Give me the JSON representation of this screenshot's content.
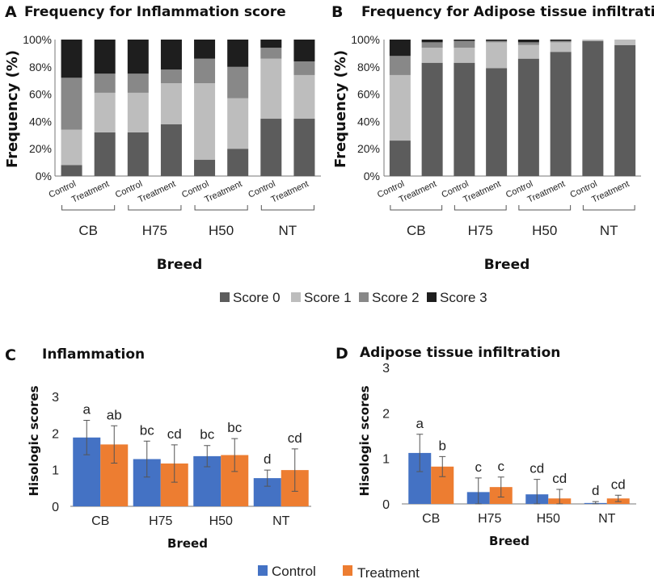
{
  "colors": {
    "score0": "#5c5c5c",
    "score1": "#bdbdbd",
    "score2": "#888888",
    "score3": "#1e1e1e",
    "control": "#4472c4",
    "treatment": "#ed7d31",
    "error": "#555555"
  },
  "chart_data": [
    {
      "panel": "A",
      "type": "bar",
      "stacked": true,
      "title": "Frequency for Inflammation score",
      "ylabel": "Frequency (%)",
      "xlabel": "Breed",
      "ylim": [
        0,
        100
      ],
      "yticks": [
        "0%",
        "20%",
        "40%",
        "60%",
        "80%",
        "100%"
      ],
      "categories": [
        "Control",
        "Treatment",
        "Control",
        "Treatment",
        "Control",
        "Treatment",
        "Control",
        "Treatment"
      ],
      "groups": [
        "CB",
        "H75",
        "H50",
        "NT"
      ],
      "series": [
        {
          "name": "Score 0",
          "values": [
            8,
            32,
            32,
            38,
            12,
            20,
            42,
            42
          ]
        },
        {
          "name": "Score 1",
          "values": [
            26,
            29,
            29,
            30,
            56,
            37,
            44,
            32
          ]
        },
        {
          "name": "Score 2",
          "values": [
            38,
            14,
            14,
            10,
            18,
            23,
            8,
            10
          ]
        },
        {
          "name": "Score 3",
          "values": [
            28,
            25,
            25,
            22,
            14,
            20,
            6,
            16
          ]
        }
      ]
    },
    {
      "panel": "B",
      "type": "bar",
      "stacked": true,
      "title": "Frequency for Adipose tissue infiltration",
      "ylabel": "Frequency (%)",
      "xlabel": "Breed",
      "ylim": [
        0,
        100
      ],
      "yticks": [
        "0%",
        "20%",
        "40%",
        "60%",
        "80%",
        "100%"
      ],
      "categories": [
        "Control",
        "Treatment",
        "Control",
        "Treatment",
        "Control",
        "Treatment",
        "Control",
        "Treatment"
      ],
      "groups": [
        "CB",
        "H75",
        "H50",
        "NT"
      ],
      "series": [
        {
          "name": "Score 0",
          "values": [
            26,
            83,
            83,
            79,
            86,
            91,
            99,
            96
          ]
        },
        {
          "name": "Score 1",
          "values": [
            48,
            11,
            11,
            19,
            10,
            7,
            1,
            4
          ]
        },
        {
          "name": "Score 2",
          "values": [
            14,
            4,
            5,
            1,
            2,
            1,
            0,
            0
          ]
        },
        {
          "name": "Score 3",
          "values": [
            12,
            2,
            1,
            1,
            2,
            1,
            0,
            0
          ]
        }
      ]
    },
    {
      "panel": "C",
      "type": "bar",
      "title": "Inflammation",
      "ylabel": "Hisologic scores",
      "xlabel": "Breed",
      "ylim": [
        0,
        3
      ],
      "yticks": [
        "0",
        "1",
        "2",
        "3"
      ],
      "categories": [
        "CB",
        "H75",
        "H50",
        "NT"
      ],
      "series": [
        {
          "name": "Control",
          "values": [
            1.88,
            1.29,
            1.37,
            0.77
          ],
          "errors": [
            0.47,
            0.49,
            0.29,
            0.22
          ],
          "labels": [
            "a",
            "bc",
            "bc",
            "d"
          ]
        },
        {
          "name": "Treatment",
          "values": [
            1.69,
            1.17,
            1.4,
            0.99
          ],
          "errors": [
            0.51,
            0.51,
            0.45,
            0.58
          ],
          "labels": [
            "ab",
            "cd",
            "bc",
            "cd"
          ]
        }
      ]
    },
    {
      "panel": "D",
      "type": "bar",
      "title": "Adipose tissue infiltration",
      "ylabel": "Hisologic scores",
      "xlabel": "Breed",
      "ylim": [
        0,
        3
      ],
      "yticks": [
        "0",
        "1",
        "2",
        "3"
      ],
      "categories": [
        "CB",
        "H75",
        "H50",
        "NT"
      ],
      "series": [
        {
          "name": "Control",
          "values": [
            1.12,
            0.26,
            0.21,
            0.02
          ],
          "errors": [
            0.41,
            0.31,
            0.33,
            0.03
          ],
          "labels": [
            "a",
            "c",
            "cd",
            "d"
          ]
        },
        {
          "name": "Treatment",
          "values": [
            0.82,
            0.37,
            0.12,
            0.12
          ],
          "errors": [
            0.22,
            0.22,
            0.2,
            0.07
          ],
          "labels": [
            "b",
            "c",
            "cd",
            "cd"
          ]
        }
      ]
    }
  ],
  "legend_stacked": [
    "Score 0",
    "Score 1",
    "Score 2",
    "Score 3"
  ],
  "legend_bars": [
    "Control",
    "Treatment"
  ]
}
